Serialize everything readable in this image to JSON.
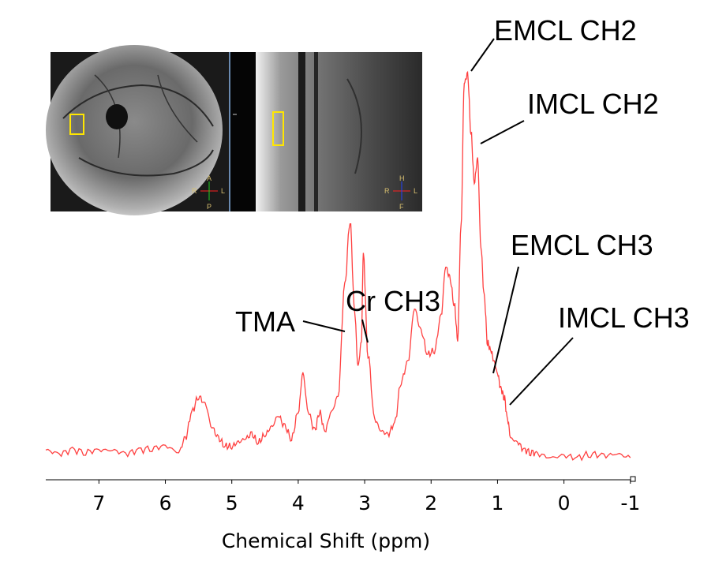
{
  "chart_data": {
    "type": "line",
    "title": "",
    "xlabel": "Chemical Shift (ppm)",
    "ylabel": "",
    "x_reversed": true,
    "xlim": [
      7.8,
      -1.05
    ],
    "ylim": [
      0,
      1.0
    ],
    "grid": false,
    "x_ticks": [
      7,
      6,
      5,
      4,
      3,
      2,
      1,
      0,
      -1
    ],
    "x_tick_labels": [
      "7",
      "6",
      "5",
      "4",
      "3",
      "2",
      "1",
      "0",
      "-1"
    ],
    "series": [
      {
        "color": "#ff4040",
        "x": [
          7.8,
          7.6,
          7.4,
          7.2,
          7.0,
          6.8,
          6.6,
          6.4,
          6.2,
          6.0,
          5.8,
          5.7,
          5.6,
          5.5,
          5.4,
          5.3,
          5.2,
          5.1,
          5.0,
          4.9,
          4.8,
          4.7,
          4.6,
          4.5,
          4.4,
          4.3,
          4.2,
          4.1,
          4.0,
          3.93,
          3.85,
          3.75,
          3.68,
          3.6,
          3.5,
          3.4,
          3.3,
          3.22,
          3.15,
          3.1,
          3.05,
          3.02,
          2.95,
          2.85,
          2.75,
          2.65,
          2.55,
          2.45,
          2.35,
          2.25,
          2.15,
          2.05,
          1.95,
          1.85,
          1.78,
          1.72,
          1.65,
          1.6,
          1.55,
          1.5,
          1.45,
          1.4,
          1.35,
          1.3,
          1.25,
          1.2,
          1.15,
          1.1,
          1.05,
          1.0,
          0.95,
          0.9,
          0.85,
          0.8,
          0.7,
          0.6,
          0.5,
          0.4,
          0.2,
          0.0,
          -0.2,
          -0.4,
          -0.6,
          -0.8,
          -1.0
        ],
        "y": [
          0.02,
          0.01,
          0.02,
          0.015,
          0.02,
          0.02,
          0.01,
          0.02,
          0.025,
          0.03,
          0.015,
          0.05,
          0.12,
          0.16,
          0.14,
          0.08,
          0.05,
          0.03,
          0.03,
          0.04,
          0.05,
          0.06,
          0.04,
          0.06,
          0.08,
          0.11,
          0.08,
          0.05,
          0.12,
          0.22,
          0.12,
          0.07,
          0.12,
          0.07,
          0.12,
          0.16,
          0.45,
          0.62,
          0.38,
          0.24,
          0.3,
          0.53,
          0.27,
          0.1,
          0.07,
          0.06,
          0.09,
          0.2,
          0.25,
          0.39,
          0.33,
          0.27,
          0.28,
          0.37,
          0.5,
          0.47,
          0.4,
          0.31,
          0.6,
          0.98,
          1.0,
          0.85,
          0.72,
          0.78,
          0.55,
          0.42,
          0.3,
          0.28,
          0.25,
          0.22,
          0.18,
          0.16,
          0.1,
          0.05,
          0.04,
          0.02,
          0.015,
          0.01,
          0.0,
          0.005,
          0.0,
          0.01,
          0.005,
          0.01,
          0.0
        ]
      }
    ],
    "annotations": [
      {
        "text": "EMCL CH2",
        "x": 1.45
      },
      {
        "text": "IMCL CH2",
        "x": 1.3
      },
      {
        "text": "EMCL CH3",
        "x": 1.1
      },
      {
        "text": "IMCL CH3",
        "x": 0.85
      },
      {
        "text": "TMA",
        "x": 3.22
      },
      {
        "text": "Cr CH3",
        "x": 3.02
      }
    ]
  },
  "inset": {
    "left_panel": {
      "top": "A",
      "bottom": "P",
      "left": "R",
      "right": "L"
    },
    "right_panel": {
      "top": "H",
      "bottom": "F",
      "left": "R",
      "right": "L"
    }
  }
}
